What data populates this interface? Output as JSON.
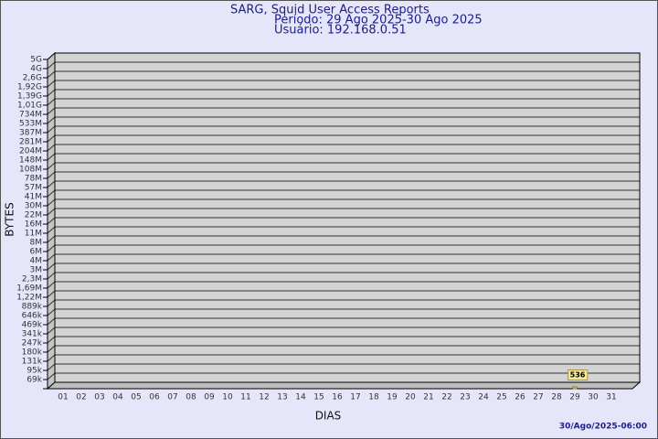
{
  "chart_data": {
    "type": "bar",
    "title": "SARG, Squid User Access Reports",
    "period": "Período: 29 Ago 2025-30 Ago 2025",
    "user": "Usuário: 192.168.0.51",
    "x_label": "DIAS",
    "y_label": "BYTES",
    "footer": "30/Ago/2025-06:00",
    "categories": [
      "01",
      "02",
      "03",
      "04",
      "05",
      "06",
      "07",
      "08",
      "09",
      "10",
      "11",
      "12",
      "13",
      "14",
      "15",
      "16",
      "17",
      "18",
      "19",
      "20",
      "21",
      "22",
      "23",
      "24",
      "25",
      "26",
      "27",
      "28",
      "29",
      "30",
      "31"
    ],
    "values": [
      null,
      null,
      null,
      null,
      null,
      null,
      null,
      null,
      null,
      null,
      null,
      null,
      null,
      null,
      null,
      null,
      null,
      null,
      null,
      null,
      null,
      null,
      null,
      null,
      null,
      null,
      null,
      null,
      536,
      null,
      null
    ],
    "color": "#f5e9a0",
    "log_scale": true,
    "grid": true,
    "ylim": [
      50000,
      5000000000
    ],
    "yticks": [
      {
        "value": 68843,
        "label": "69k"
      },
      {
        "value": 94787,
        "label": "95k"
      },
      {
        "value": 130510,
        "label": "131k"
      },
      {
        "value": 179696,
        "label": "180k"
      },
      {
        "value": 247420,
        "label": "247k"
      },
      {
        "value": 340665,
        "label": "341k"
      },
      {
        "value": 469053,
        "label": "469k"
      },
      {
        "value": 645823,
        "label": "646k"
      },
      {
        "value": 889210,
        "label": "889k"
      },
      {
        "value": 1224330,
        "label": "1,22M"
      },
      {
        "value": 1685740,
        "label": "1,69M"
      },
      {
        "value": 2321050,
        "label": "2,3M"
      },
      {
        "value": 3195800,
        "label": "3M"
      },
      {
        "value": 4400200,
        "label": "4M"
      },
      {
        "value": 6058500,
        "label": "6M"
      },
      {
        "value": 8341700,
        "label": "8M"
      },
      {
        "value": 11485400,
        "label": "11M"
      },
      {
        "value": 15813900,
        "label": "16M"
      },
      {
        "value": 21773700,
        "label": "22M"
      },
      {
        "value": 29979600,
        "label": "30M"
      },
      {
        "value": 41277900,
        "label": "41M"
      },
      {
        "value": 56834000,
        "label": "57M"
      },
      {
        "value": 78253000,
        "label": "78M"
      },
      {
        "value": 107744000,
        "label": "108M"
      },
      {
        "value": 148349000,
        "label": "148M"
      },
      {
        "value": 204257000,
        "label": "204M"
      },
      {
        "value": 281236000,
        "label": "281M"
      },
      {
        "value": 387227000,
        "label": "387M"
      },
      {
        "value": 533161000,
        "label": "533M"
      },
      {
        "value": 734093000,
        "label": "734M"
      },
      {
        "value": 1010750000,
        "label": "1,01G"
      },
      {
        "value": 1391660000,
        "label": "1,39G"
      },
      {
        "value": 1916130000,
        "label": "1,92G"
      },
      {
        "value": 2638270000,
        "label": "2,6G"
      },
      {
        "value": 3632550000,
        "label": "4G"
      },
      {
        "value": 5000000000,
        "label": "5G"
      }
    ]
  }
}
